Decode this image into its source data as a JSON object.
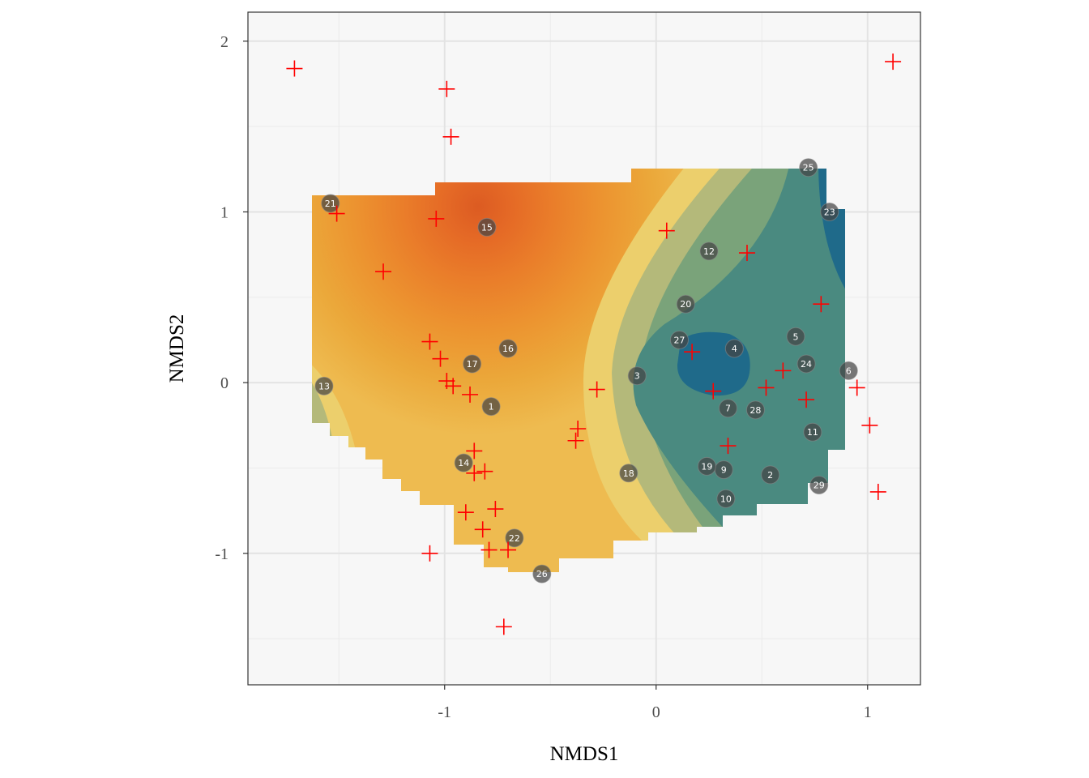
{
  "chart_data": {
    "type": "scatter",
    "title": "",
    "xlabel": "NMDS1",
    "ylabel": "NMDS2",
    "xlim": [
      -1.93,
      1.25
    ],
    "ylim": [
      -1.77,
      2.17
    ],
    "x_ticks": [
      -1,
      0,
      1
    ],
    "y_ticks": [
      -1,
      0,
      1,
      2
    ],
    "x_tick_labels": [
      "-1",
      "0",
      "1"
    ],
    "y_tick_labels": [
      "-1",
      "0",
      "1",
      "2"
    ],
    "grid": true,
    "legend": "none",
    "surface": {
      "description": "filled contour surface over site ordination",
      "colors_low_to_high": [
        "#1d6a8a",
        "#3b7f85",
        "#4a8a80",
        "#7aa37a",
        "#b4b97a",
        "#eccf6c",
        "#eebb50",
        "#eba83a",
        "#ec9430",
        "#ea7e2a",
        "#e56a26",
        "#dc5b22"
      ]
    },
    "sites": [
      {
        "id": "1",
        "x": -0.78,
        "y": -0.14
      },
      {
        "id": "2",
        "x": 0.54,
        "y": -0.54
      },
      {
        "id": "3",
        "x": -0.09,
        "y": 0.04
      },
      {
        "id": "4",
        "x": 0.37,
        "y": 0.2
      },
      {
        "id": "5",
        "x": 0.66,
        "y": 0.27
      },
      {
        "id": "6",
        "x": 0.91,
        "y": 0.07
      },
      {
        "id": "7",
        "x": 0.34,
        "y": -0.15
      },
      {
        "id": "9",
        "x": 0.32,
        "y": -0.51
      },
      {
        "id": "10",
        "x": 0.33,
        "y": -0.68
      },
      {
        "id": "11",
        "x": 0.74,
        "y": -0.29
      },
      {
        "id": "12",
        "x": 0.25,
        "y": 0.77
      },
      {
        "id": "13",
        "x": -1.57,
        "y": -0.02
      },
      {
        "id": "14",
        "x": -0.91,
        "y": -0.47
      },
      {
        "id": "15",
        "x": -0.8,
        "y": 0.91
      },
      {
        "id": "16",
        "x": -0.7,
        "y": 0.2
      },
      {
        "id": "17",
        "x": -0.87,
        "y": 0.11
      },
      {
        "id": "18",
        "x": -0.13,
        "y": -0.53
      },
      {
        "id": "19",
        "x": 0.24,
        "y": -0.49
      },
      {
        "id": "20",
        "x": 0.14,
        "y": 0.46
      },
      {
        "id": "21",
        "x": -1.54,
        "y": 1.05
      },
      {
        "id": "22",
        "x": -0.67,
        "y": -0.91
      },
      {
        "id": "23",
        "x": 0.82,
        "y": 1.0
      },
      {
        "id": "24",
        "x": 0.71,
        "y": 0.11
      },
      {
        "id": "25",
        "x": 0.72,
        "y": 1.26
      },
      {
        "id": "26",
        "x": -0.54,
        "y": -1.12
      },
      {
        "id": "27",
        "x": 0.11,
        "y": 0.25
      },
      {
        "id": "28",
        "x": 0.47,
        "y": -0.16
      },
      {
        "id": "29",
        "x": 0.77,
        "y": -0.6
      }
    ],
    "species": [
      {
        "x": -1.71,
        "y": 1.84
      },
      {
        "x": -0.99,
        "y": 1.72
      },
      {
        "x": -0.97,
        "y": 1.44
      },
      {
        "x": 1.12,
        "y": 1.88
      },
      {
        "x": -1.51,
        "y": 0.99
      },
      {
        "x": -1.04,
        "y": 0.96
      },
      {
        "x": -1.29,
        "y": 0.65
      },
      {
        "x": 0.05,
        "y": 0.89
      },
      {
        "x": 0.43,
        "y": 0.76
      },
      {
        "x": 0.78,
        "y": 0.46
      },
      {
        "x": -1.07,
        "y": 0.24
      },
      {
        "x": -1.02,
        "y": 0.14
      },
      {
        "x": 0.17,
        "y": 0.18
      },
      {
        "x": 0.6,
        "y": 0.07
      },
      {
        "x": -0.99,
        "y": 0.01
      },
      {
        "x": -0.96,
        "y": -0.02
      },
      {
        "x": -0.88,
        "y": -0.07
      },
      {
        "x": -0.28,
        "y": -0.04
      },
      {
        "x": 0.27,
        "y": -0.05
      },
      {
        "x": 0.52,
        "y": -0.03
      },
      {
        "x": 0.71,
        "y": -0.1
      },
      {
        "x": 0.95,
        "y": -0.03
      },
      {
        "x": 1.01,
        "y": -0.25
      },
      {
        "x": -0.37,
        "y": -0.27
      },
      {
        "x": -0.38,
        "y": -0.34
      },
      {
        "x": 0.34,
        "y": -0.37
      },
      {
        "x": -0.86,
        "y": -0.4
      },
      {
        "x": -0.86,
        "y": -0.53
      },
      {
        "x": -0.81,
        "y": -0.52
      },
      {
        "x": -0.76,
        "y": -0.74
      },
      {
        "x": -0.9,
        "y": -0.76
      },
      {
        "x": -0.82,
        "y": -0.86
      },
      {
        "x": -0.79,
        "y": -0.98
      },
      {
        "x": -0.7,
        "y": -0.98
      },
      {
        "x": -1.07,
        "y": -1.0
      },
      {
        "x": 1.05,
        "y": -0.64
      },
      {
        "x": -0.72,
        "y": -1.43
      }
    ],
    "site_marker_color": "#444444",
    "species_marker_color": "#ff0000"
  }
}
